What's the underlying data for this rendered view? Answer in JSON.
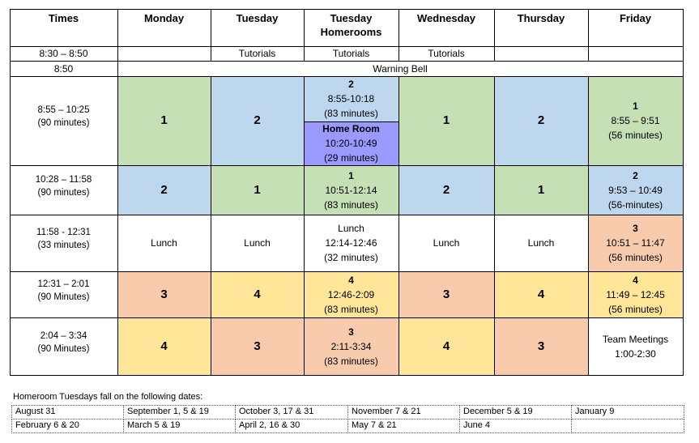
{
  "colors": {
    "green": "#c5e0b4",
    "blue": "#bdd7ee",
    "purple": "#9999ff",
    "orange": "#f8cbad",
    "yellow": "#ffe699",
    "white": "#ffffff"
  },
  "headers": [
    "Times",
    "Monday",
    "Tuesday",
    "Tuesday Homerooms",
    "Wednesday",
    "Thursday",
    "Friday"
  ],
  "tutorials_row": {
    "time": "8:30 – 8:50",
    "cells": [
      "",
      "Tutorials",
      "Tutorials",
      "Tutorials",
      "",
      ""
    ]
  },
  "warning_row": {
    "time": "8:50",
    "label": "Warning Bell"
  },
  "rows": [
    {
      "time": [
        "8:55 – 10:25",
        "(90 minutes)"
      ],
      "cells": [
        {
          "color": "green",
          "big": "1"
        },
        {
          "color": "blue",
          "big": "2"
        },
        {
          "split": true,
          "top": {
            "color": "blue",
            "title": "2",
            "lines": [
              "8:55-10:18",
              "(83 minutes)"
            ]
          },
          "bottom": {
            "color": "purple",
            "title": "Home Room",
            "lines": [
              "10:20-10:49",
              "(29 minutes)"
            ]
          }
        },
        {
          "color": "green",
          "big": "1"
        },
        {
          "color": "blue",
          "big": "2"
        },
        {
          "color": "green",
          "title": "1",
          "lines": [
            "8:55 – 9:51",
            "(56 minutes)"
          ]
        }
      ]
    },
    {
      "time": [
        "10:28 – 11:58",
        "(90 minutes)"
      ],
      "cells": [
        {
          "color": "blue",
          "big": "2"
        },
        {
          "color": "green",
          "big": "1"
        },
        {
          "color": "green",
          "title": "1",
          "lines": [
            "10:51-12:14",
            "(83 minutes)"
          ]
        },
        {
          "color": "blue",
          "big": "2"
        },
        {
          "color": "green",
          "big": "1"
        },
        {
          "color": "blue",
          "title": "2",
          "lines": [
            "9:53 – 10:49",
            "(56-minutes)"
          ]
        }
      ]
    },
    {
      "time": [
        "11:58 - 12:31",
        "(33 minutes)"
      ],
      "cells": [
        {
          "color": "white",
          "lines": [
            "Lunch"
          ]
        },
        {
          "color": "white",
          "lines": [
            "Lunch"
          ]
        },
        {
          "color": "white",
          "lines": [
            "Lunch",
            "12:14-12:46",
            "(32 minutes)"
          ]
        },
        {
          "color": "white",
          "lines": [
            "Lunch"
          ]
        },
        {
          "color": "white",
          "lines": [
            "Lunch"
          ]
        },
        {
          "color": "orange",
          "title": "3",
          "lines": [
            "10:51 – 11:47",
            "(56 minutes)"
          ]
        }
      ]
    },
    {
      "time": [
        "12:31 – 2:01",
        "(90 Minutes)"
      ],
      "cells": [
        {
          "color": "orange",
          "big": "3"
        },
        {
          "color": "yellow",
          "big": "4"
        },
        {
          "color": "yellow",
          "title": "4",
          "lines": [
            "12:46-2:09",
            "(83 minutes)"
          ]
        },
        {
          "color": "orange",
          "big": "3"
        },
        {
          "color": "yellow",
          "big": "4"
        },
        {
          "color": "yellow",
          "title": "4",
          "lines": [
            "11:49 – 12:45",
            "(56 minutes)"
          ]
        }
      ]
    },
    {
      "time": [
        "2:04 – 3:34",
        "(90 Minutes)"
      ],
      "cells": [
        {
          "color": "yellow",
          "big": "4"
        },
        {
          "color": "orange",
          "big": "3"
        },
        {
          "color": "orange",
          "title": "3",
          "lines": [
            "2:11-3:34",
            "(83 minutes)"
          ]
        },
        {
          "color": "yellow",
          "big": "4"
        },
        {
          "color": "orange",
          "big": "3"
        },
        {
          "color": "white",
          "lines": [
            "Team Meetings",
            "1:00-2:30"
          ]
        }
      ]
    }
  ],
  "homeroom_dates": {
    "intro": "Homeroom Tuesdays fall on the following dates:",
    "rows": [
      [
        "August 31",
        "September 1, 5 & 19",
        "October 3, 17 & 31",
        "November 7 & 21",
        "December 5 & 19",
        "January 9"
      ],
      [
        "February 6 & 20",
        "March 5 & 19",
        "April 2, 16 & 30",
        "May 7 & 21",
        "June 4",
        ""
      ]
    ]
  }
}
